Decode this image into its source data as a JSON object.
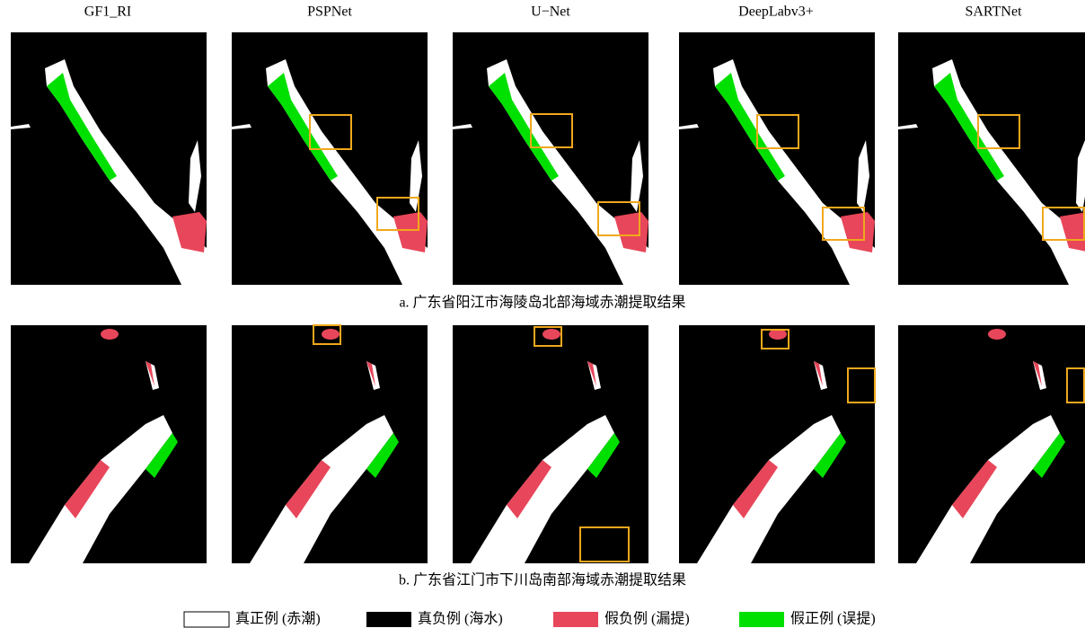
{
  "columns": [
    "GF1_RI",
    "PSPNet",
    "U−Net",
    "DeepLabv3+",
    "SARTNet"
  ],
  "captions": [
    "a. 广东省阳江市海陵岛北部海域赤潮提取结果",
    "b. 广东省江门市下川岛南部海域赤潮提取结果"
  ],
  "legend": [
    "真正例 (赤潮)",
    "真负例 (海水)",
    "假负例 (漏提)",
    "假正例 (误提)"
  ]
}
